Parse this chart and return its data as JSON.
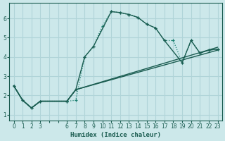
{
  "title": "",
  "xlabel": "Humidex (Indice chaleur)",
  "ylabel": "",
  "background_color": "#cce8ea",
  "grid_color": "#b0d4d8",
  "line_color_dark": "#1a5c50",
  "line_color_dotted": "#1a8070",
  "xlim": [
    -0.5,
    23.5
  ],
  "ylim": [
    0.7,
    6.8
  ],
  "yticks": [
    1,
    2,
    3,
    4,
    5,
    6
  ],
  "xtick_labels": [
    "0",
    "1",
    "2",
    "3",
    "",
    "",
    "6",
    "7",
    "8",
    "9",
    "10",
    "11",
    "12",
    "13",
    "14",
    "15",
    "16",
    "17",
    "18",
    "19",
    "20",
    "21",
    "22",
    "23"
  ],
  "series_dotted": {
    "x": [
      0,
      1,
      2,
      3,
      6,
      7,
      8,
      9,
      10,
      11,
      12,
      13,
      14,
      15,
      16,
      17,
      18,
      19,
      20,
      21,
      22,
      23
    ],
    "y": [
      2.5,
      1.75,
      1.35,
      1.7,
      1.7,
      1.75,
      4.0,
      4.55,
      5.6,
      6.35,
      6.3,
      6.2,
      6.05,
      5.7,
      5.5,
      4.85,
      4.85,
      3.7,
      4.85,
      4.2,
      4.35,
      4.4
    ]
  },
  "series_solid1": {
    "x": [
      0,
      1,
      2,
      3,
      6,
      7,
      23
    ],
    "y": [
      2.5,
      1.75,
      1.35,
      1.7,
      1.7,
      2.3,
      4.35
    ]
  },
  "series_solid2": {
    "x": [
      0,
      1,
      2,
      3,
      6,
      7,
      23
    ],
    "y": [
      2.5,
      1.75,
      1.35,
      1.7,
      1.7,
      2.3,
      4.5
    ]
  },
  "series_marked": {
    "x": [
      0,
      1,
      2,
      3,
      6,
      7,
      8,
      9,
      11,
      12,
      13,
      14,
      15,
      16,
      17,
      19,
      20,
      21,
      22,
      23
    ],
    "y": [
      2.5,
      1.75,
      1.35,
      1.7,
      1.7,
      2.3,
      4.0,
      4.55,
      6.35,
      6.3,
      6.2,
      6.05,
      5.7,
      5.5,
      4.85,
      3.7,
      4.85,
      4.2,
      4.35,
      4.4
    ]
  }
}
